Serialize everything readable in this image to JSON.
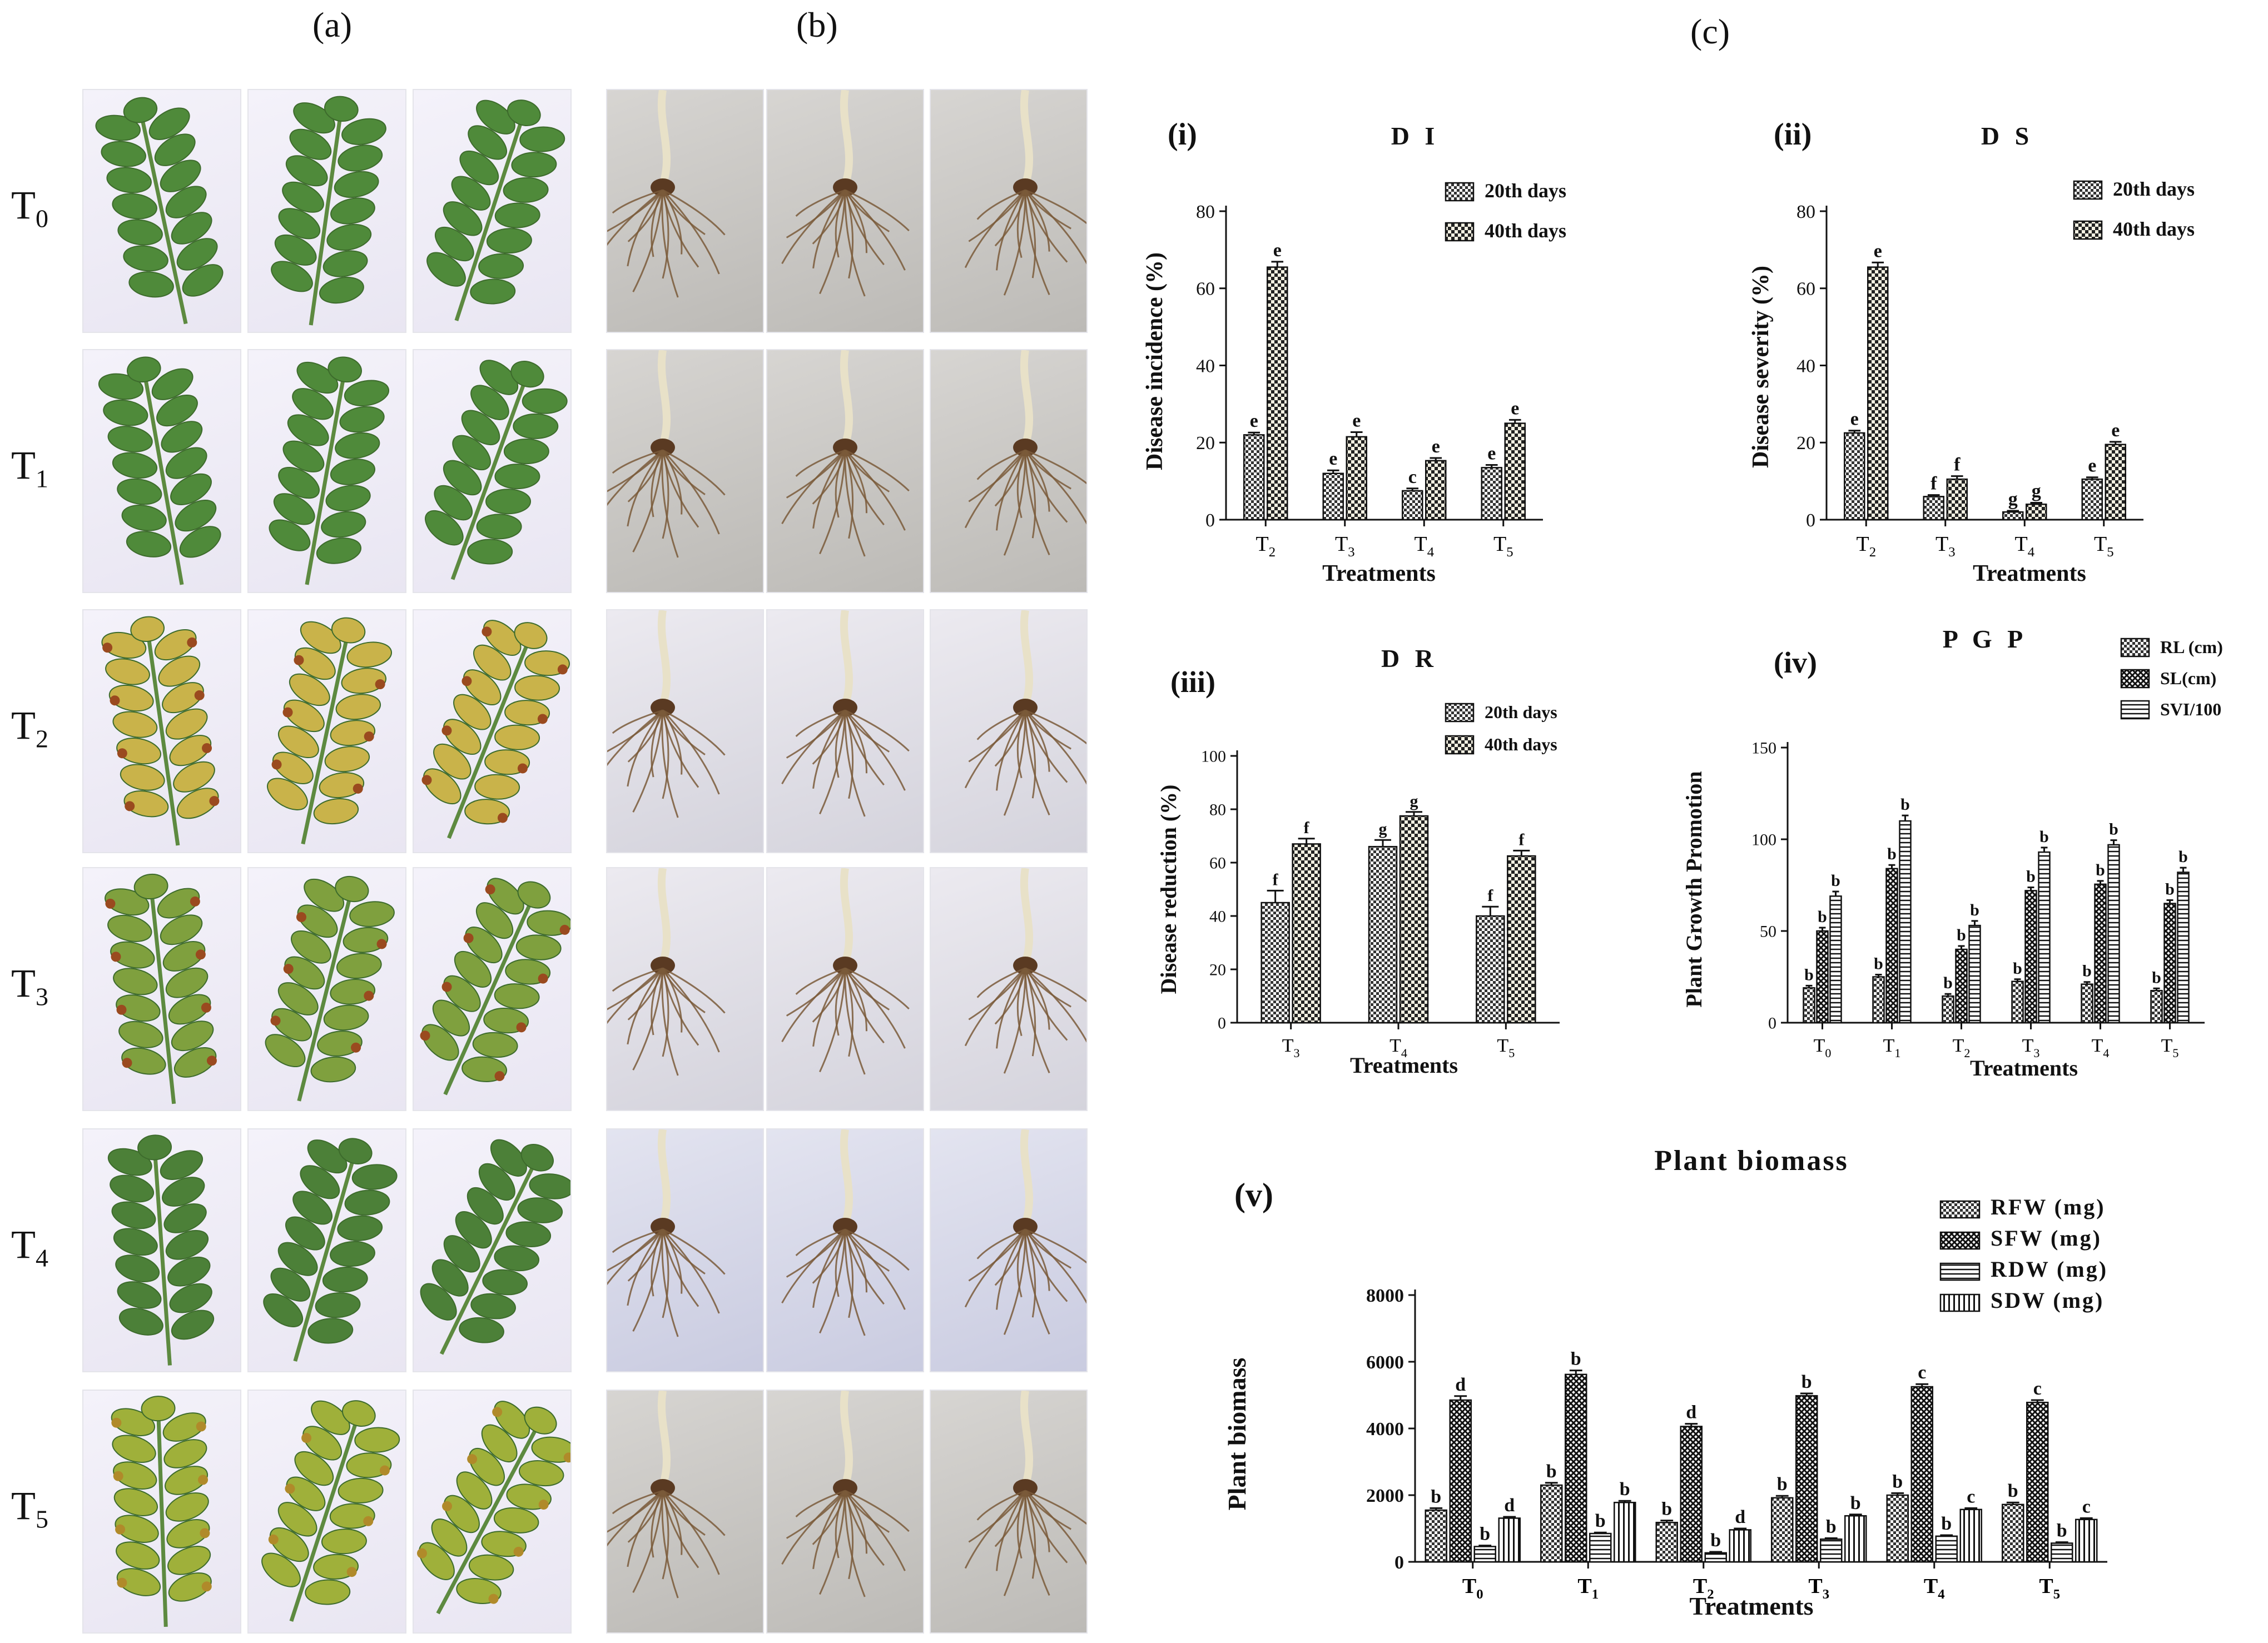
{
  "panels": {
    "a": "(a)",
    "b": "(b)",
    "c": "(c)"
  },
  "rows": [
    {
      "base": "T",
      "sub": "0"
    },
    {
      "base": "T",
      "sub": "1"
    },
    {
      "base": "T",
      "sub": "2"
    },
    {
      "base": "T",
      "sub": "3"
    },
    {
      "base": "T",
      "sub": "4"
    },
    {
      "base": "T",
      "sub": "5"
    }
  ],
  "colors": {
    "leaf_healthy": "#4f8a3a",
    "leaf_yellow": "#c9b34a",
    "leaf_necrotic": "#9a4a1f",
    "root": "#7a5a3a",
    "axis": "#111111"
  },
  "chart_data": [
    {
      "id": "i",
      "tag": "(i)",
      "type": "bar",
      "title": "D I",
      "ylabel": "Disease incidence (%)",
      "xlabel": "Treatments",
      "ylim": [
        0,
        80
      ],
      "yticks": [
        0,
        20,
        40,
        60,
        80
      ],
      "categories": [
        {
          "base": "T",
          "sub": "2"
        },
        {
          "base": "T",
          "sub": "3"
        },
        {
          "base": "T",
          "sub": "4"
        },
        {
          "base": "T",
          "sub": "5"
        }
      ],
      "series": [
        {
          "name": "20th days",
          "pattern": "check",
          "values": [
            22,
            12,
            7.5,
            13.5
          ],
          "err": [
            0.6,
            0.8,
            0.6,
            0.7
          ],
          "letters": [
            "e",
            "e",
            "c",
            "e"
          ]
        },
        {
          "name": "40th days",
          "pattern": "dots",
          "values": [
            65.5,
            21.5,
            15.3,
            25
          ],
          "err": [
            1.4,
            1.2,
            0.7,
            0.9
          ],
          "letters": [
            "e",
            "e",
            "e",
            "e"
          ]
        }
      ],
      "legend": "top-right"
    },
    {
      "id": "ii",
      "tag": "(ii)",
      "type": "bar",
      "title": "D S",
      "ylabel": "Disease severity (%)",
      "xlabel": "Treatments",
      "ylim": [
        0,
        80
      ],
      "yticks": [
        0,
        20,
        40,
        60,
        80
      ],
      "categories": [
        {
          "base": "T",
          "sub": "2"
        },
        {
          "base": "T",
          "sub": "3"
        },
        {
          "base": "T",
          "sub": "4"
        },
        {
          "base": "T",
          "sub": "5"
        }
      ],
      "series": [
        {
          "name": "20th days",
          "pattern": "check",
          "values": [
            22.5,
            6,
            2,
            10.5
          ],
          "err": [
            0.6,
            0.4,
            0.3,
            0.5
          ],
          "letters": [
            "e",
            "f",
            "g",
            "e"
          ]
        },
        {
          "name": "40th days",
          "pattern": "dots",
          "values": [
            65.5,
            10.5,
            4,
            19.5
          ],
          "err": [
            1.2,
            0.8,
            0.4,
            0.7
          ],
          "letters": [
            "e",
            "f",
            "g",
            "e"
          ]
        }
      ],
      "legend": "top-right"
    },
    {
      "id": "iii",
      "tag": "(iii)",
      "type": "bar",
      "title": "D R",
      "ylabel": "Disease reduction  (%)",
      "xlabel": "Treatments",
      "ylim": [
        0,
        100
      ],
      "yticks": [
        0,
        20,
        40,
        60,
        80,
        100
      ],
      "categories": [
        {
          "base": "T",
          "sub": "3"
        },
        {
          "base": "T",
          "sub": "4"
        },
        {
          "base": "T",
          "sub": "5"
        }
      ],
      "series": [
        {
          "name": "20th days",
          "pattern": "check",
          "values": [
            45,
            66,
            40
          ],
          "err": [
            4.5,
            2.5,
            3.5
          ],
          "letters": [
            "f",
            "g",
            "f"
          ]
        },
        {
          "name": "40th days",
          "pattern": "dots",
          "values": [
            67,
            77.5,
            62.5
          ],
          "err": [
            2,
            1.5,
            2
          ],
          "letters": [
            "f",
            "g",
            "f"
          ]
        }
      ],
      "legend": "top-right"
    },
    {
      "id": "iv",
      "tag": "(iv)",
      "type": "bar",
      "title": "P G P",
      "ylabel": "Plant Growth Promotion",
      "xlabel": "Treatments",
      "ylim": [
        0,
        150
      ],
      "yticks": [
        0,
        50,
        100,
        150
      ],
      "categories": [
        {
          "base": "T",
          "sub": "0"
        },
        {
          "base": "T",
          "sub": "1"
        },
        {
          "base": "T",
          "sub": "2"
        },
        {
          "base": "T",
          "sub": "3"
        },
        {
          "base": "T",
          "sub": "4"
        },
        {
          "base": "T",
          "sub": "5"
        }
      ],
      "series": [
        {
          "name": "RL (cm)",
          "pattern": "check",
          "values": [
            19,
            25,
            14.5,
            22.5,
            21,
            17.5
          ],
          "err": [
            1.2,
            1.2,
            1.2,
            1.2,
            1.2,
            1.2
          ],
          "letters": [
            "b",
            "b",
            "b",
            "b",
            "b",
            "b"
          ]
        },
        {
          "name": "SL(cm)",
          "pattern": "cross",
          "values": [
            50,
            84,
            40,
            72,
            75.5,
            65
          ],
          "err": [
            1.8,
            2,
            1.8,
            1.8,
            1.8,
            1.8
          ],
          "letters": [
            "b",
            "b",
            "b",
            "b",
            "b",
            "b"
          ]
        },
        {
          "name": "SVI/100",
          "pattern": "hlines",
          "values": [
            69,
            110,
            53,
            93,
            97,
            82
          ],
          "err": [
            2.5,
            3,
            2.5,
            2.5,
            2.5,
            2.5
          ],
          "letters": [
            "b",
            "b",
            "b",
            "b",
            "b",
            "b"
          ]
        }
      ],
      "legend": "top-right"
    },
    {
      "id": "v",
      "tag": "(v)",
      "type": "bar",
      "title": "Plant  biomass",
      "ylabel": "Plant biomass",
      "xlabel": "Treatments",
      "ylim": [
        0,
        8000
      ],
      "yticks": [
        0,
        2000,
        4000,
        6000,
        8000
      ],
      "categories": [
        {
          "base": "T",
          "sub": "0"
        },
        {
          "base": "T",
          "sub": "1"
        },
        {
          "base": "T",
          "sub": "2"
        },
        {
          "base": "T",
          "sub": "3"
        },
        {
          "base": "T",
          "sub": "4"
        },
        {
          "base": "T",
          "sub": "5"
        }
      ],
      "series": [
        {
          "name": "RFW (mg)",
          "pattern": "check",
          "values": [
            1550,
            2300,
            1180,
            1920,
            2000,
            1720
          ],
          "err": [
            60,
            70,
            60,
            60,
            60,
            60
          ],
          "letters": [
            "b",
            "b",
            "b",
            "b",
            "b",
            "b"
          ]
        },
        {
          "name": "SFW (mg)",
          "pattern": "cross",
          "values": [
            4850,
            5620,
            4060,
            4980,
            5250,
            4780
          ],
          "err": [
            120,
            120,
            80,
            70,
            80,
            70
          ],
          "letters": [
            "d",
            "b",
            "d",
            "b",
            "c",
            "c"
          ]
        },
        {
          "name": "RDW (mg)",
          "pattern": "hlines",
          "values": [
            460,
            850,
            270,
            680,
            770,
            560
          ],
          "err": [
            30,
            30,
            30,
            30,
            30,
            30
          ],
          "letters": [
            "b",
            "b",
            "b",
            "b",
            "b",
            "b"
          ]
        },
        {
          "name": "SDW (mg)",
          "pattern": "vlines",
          "values": [
            1310,
            1780,
            960,
            1380,
            1570,
            1270
          ],
          "err": [
            40,
            50,
            40,
            40,
            40,
            40
          ],
          "letters": [
            "d",
            "b",
            "d",
            "b",
            "c",
            "c"
          ]
        }
      ],
      "legend": "top-right"
    }
  ]
}
